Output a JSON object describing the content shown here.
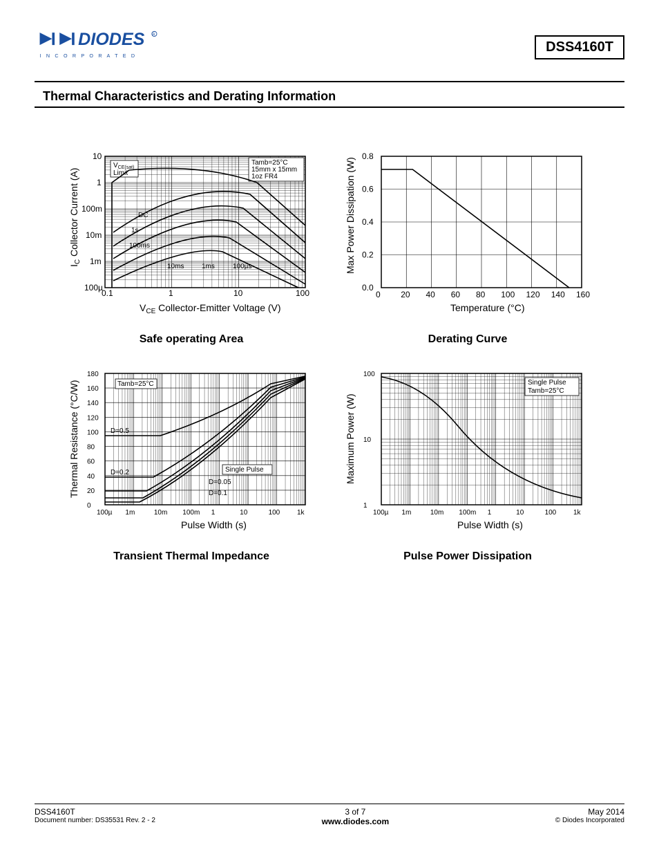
{
  "header": {
    "logo_text_top": "DIODES",
    "logo_text_bottom": "I N C O R P O R A T E D",
    "logo_color": "#1a4fa0",
    "part_number": "DSS4160T"
  },
  "section_title": "Thermal Characteristics and Derating Information",
  "charts": {
    "soa": {
      "title": "Safe operating Area",
      "xlabel_prefix": "V",
      "xlabel_sub": "CE",
      "xlabel_rest": "  Collector-Emitter Voltage (V)",
      "ylabel_prefix": "I",
      "ylabel_sub": "C",
      "ylabel_rest": "  Collector Current (A)",
      "x_ticks": [
        "0.1",
        "1",
        "10",
        "100"
      ],
      "y_ticks": [
        "100µ",
        "1m",
        "10m",
        "100m",
        "1",
        "10"
      ],
      "note_lines": [
        "Tamb=25°C",
        "15mm x 15mm",
        "1oz FR4"
      ],
      "curve_labels": [
        "DC",
        "1s",
        "100ms",
        "10ms",
        "1ms",
        "100µs"
      ],
      "vcesat_label": "VCE(sat)",
      "limit_label": "Limit",
      "line_color": "#000000",
      "bg": "#ffffff"
    },
    "derating": {
      "title": "Derating Curve",
      "xlabel": "Temperature (°C)",
      "ylabel": "Max Power Dissipation (W)",
      "x_ticks": [
        0,
        20,
        40,
        60,
        80,
        100,
        120,
        140,
        160
      ],
      "y_ticks": [
        0.0,
        0.2,
        0.4,
        0.6,
        0.8
      ],
      "data": [
        [
          0,
          0.72
        ],
        [
          25,
          0.72
        ],
        [
          150,
          0.0
        ]
      ],
      "line_color": "#000000",
      "bg": "#ffffff"
    },
    "transient": {
      "title": "Transient Thermal Impedance",
      "xlabel": "Pulse Width (s)",
      "ylabel": "Thermal Resistance (°C/W)",
      "x_ticks": [
        "100µ",
        "1m",
        "10m",
        "100m",
        "1",
        "10",
        "100",
        "1k"
      ],
      "y_ticks": [
        0,
        20,
        40,
        60,
        80,
        100,
        120,
        140,
        160,
        180
      ],
      "note": "Tamb=25°C",
      "curve_labels": [
        "D=0.5",
        "D=0.2",
        "D=0.1",
        "D=0.05",
        "Single Pulse"
      ],
      "line_color": "#000000"
    },
    "pulse": {
      "title": "Pulse Power Dissipation",
      "xlabel": "Pulse Width (s)",
      "ylabel": "Maximum Power (W)",
      "x_ticks": [
        "100µ",
        "1m",
        "10m",
        "100m",
        "1",
        "10",
        "100",
        "1k"
      ],
      "y_ticks": [
        "1",
        "10",
        "100"
      ],
      "note_lines": [
        "Single Pulse",
        "Tamb=25°C"
      ],
      "line_color": "#000000"
    }
  },
  "footer": {
    "left_line1": "DSS4160T",
    "left_line2": "Document number: DS35531 Rev. 2 - 2",
    "center_line1": "3 of 7",
    "center_line2": "www.diodes.com",
    "right_line1": "May 2014",
    "right_line2": "© Diodes Incorporated"
  }
}
